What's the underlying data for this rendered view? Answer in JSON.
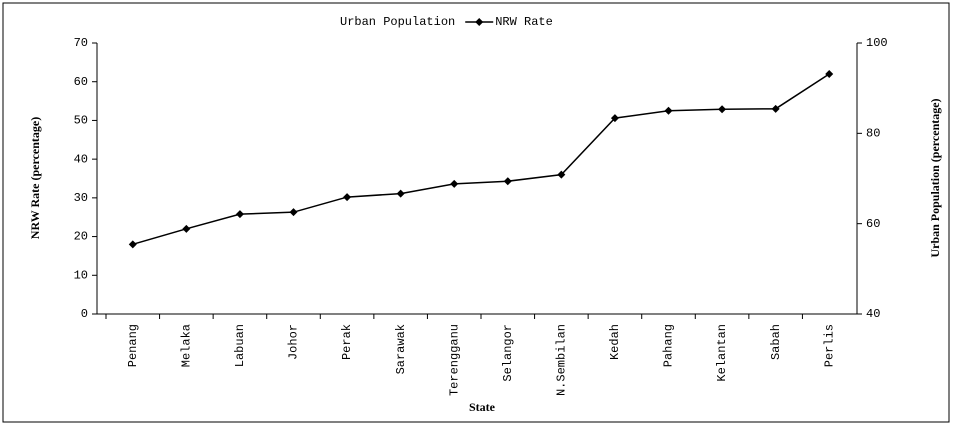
{
  "chart_data": {
    "type": "line",
    "categories": [
      "Penang",
      "Melaka",
      "Labuan",
      "Johor",
      "Perak",
      "Sarawak",
      "Terengganu",
      "Selangor",
      "N.Sembilan",
      "Kedah",
      "Pahang",
      "Kelantan",
      "Sabah",
      "Perlis"
    ],
    "series": [
      {
        "name": "Urban Population",
        "axis": "y2",
        "values": [
          null,
          null,
          null,
          null,
          null,
          null,
          null,
          null,
          null,
          null,
          null,
          null,
          null,
          null
        ]
      },
      {
        "name": "NRW Rate",
        "color": "#000000",
        "values": [
          18,
          22,
          25.8,
          26.3,
          30.2,
          31.1,
          33.6,
          34.3,
          36,
          50.6,
          52.5,
          52.9,
          53,
          62
        ]
      }
    ],
    "x_label": "State",
    "y_label": "NRW Rate (percentage)",
    "y2_label": "Urban Population (percentage)",
    "ylim": [
      0,
      70
    ],
    "yticks": [
      0,
      10,
      20,
      30,
      40,
      50,
      60,
      70
    ],
    "y2lim": [
      40,
      100
    ],
    "y2ticks": [
      40,
      60,
      80,
      100
    ]
  }
}
